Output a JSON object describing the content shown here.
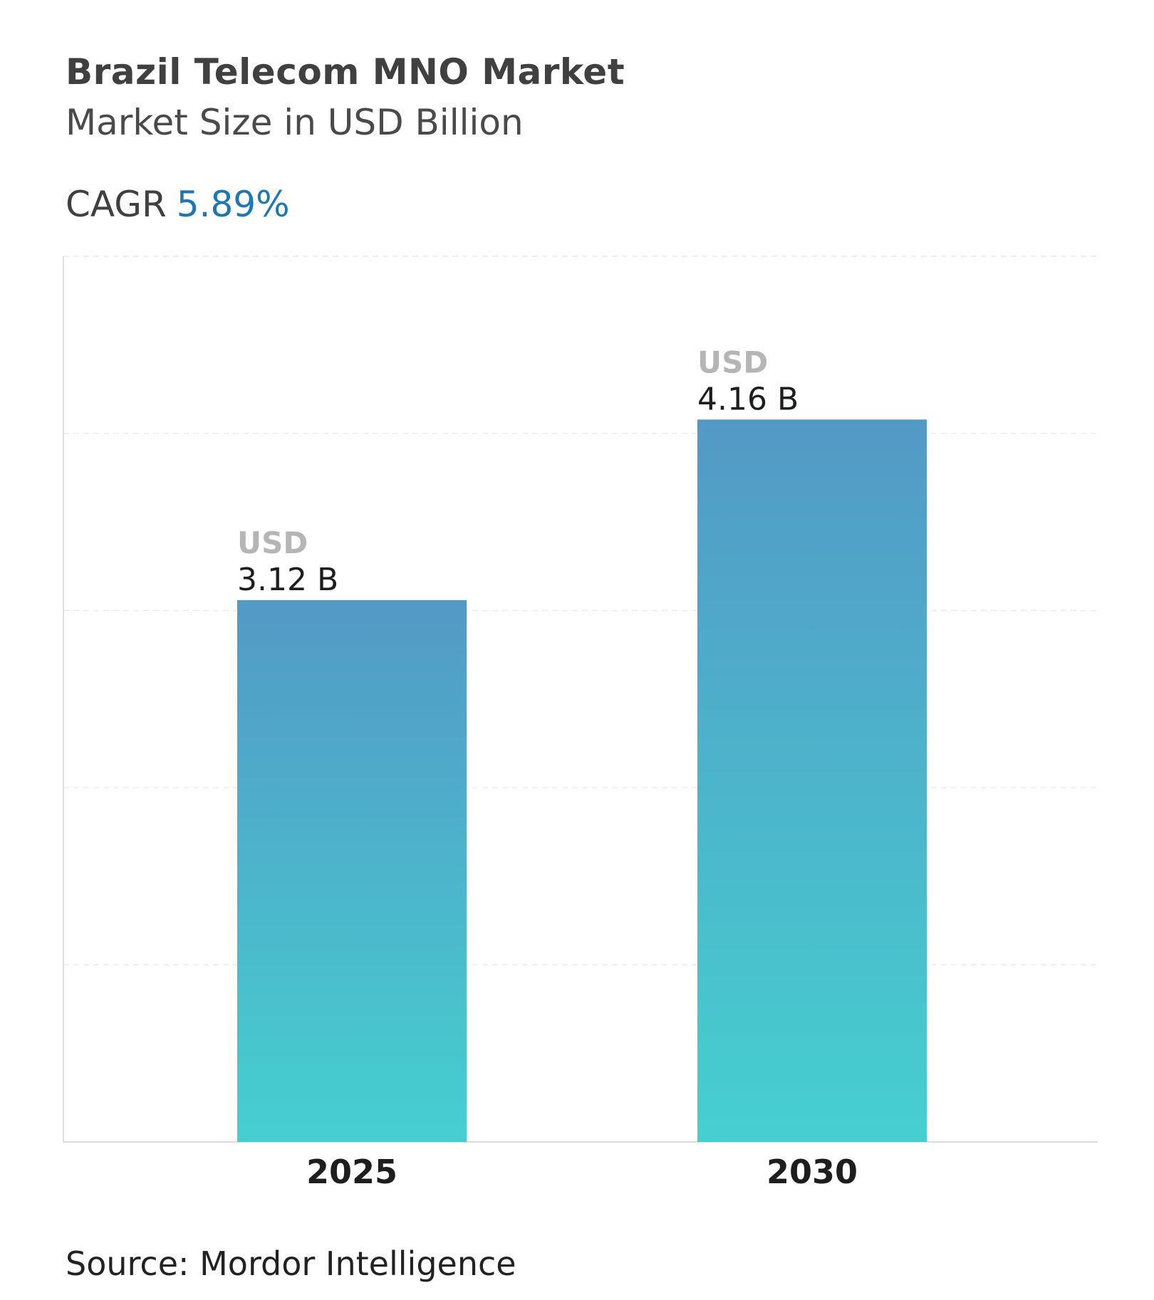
{
  "title": "Brazil Telecom MNO Market",
  "subtitle": "Market Size in USD Billion",
  "cagr": {
    "label": "CAGR",
    "value": "5.89%"
  },
  "source": "Source: Mordor Intelligence",
  "colors": {
    "bar_top": "#5399c6",
    "bar_bottom": "#46cfd0",
    "cagr": "#1b78b3"
  },
  "chart_data": {
    "type": "bar",
    "categories": [
      "2025",
      "2030"
    ],
    "values": [
      3.12,
      4.16
    ],
    "data_labels": [
      {
        "unit": "USD",
        "value": "3.12 B"
      },
      {
        "unit": "USD",
        "value": "4.16 B"
      }
    ],
    "ylim": [
      0,
      5.1
    ],
    "grid": true,
    "xlabel": "",
    "ylabel": ""
  }
}
